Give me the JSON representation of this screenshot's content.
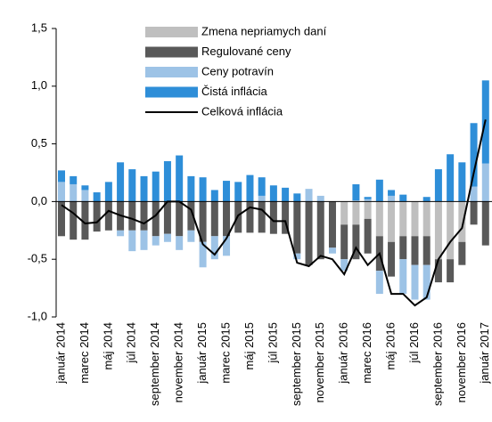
{
  "chart_data": {
    "type": "bar",
    "stacked": true,
    "categories": [
      "január 2014",
      null,
      "marec 2014",
      null,
      "máj 2014",
      null,
      "júl 2014",
      null,
      "september 2014",
      null,
      "november 2014",
      null,
      "január 2015",
      null,
      "marec 2015",
      null,
      "máj 2015",
      null,
      "júl 2015",
      null,
      "september 2015",
      null,
      "november 2015",
      null,
      "január 2016",
      null,
      "marec 2016",
      null,
      "máj 2016",
      null,
      "júl 2016",
      null,
      "september 2016",
      null,
      "november 2016",
      null,
      "január 2017"
    ],
    "series": [
      {
        "name": "Zmena nepriamych daní",
        "color": "#bfbfbf",
        "values": [
          0,
          0,
          0,
          0,
          0,
          0,
          0,
          0,
          0,
          0,
          0,
          0,
          0,
          0,
          0,
          0,
          0,
          0,
          0,
          0,
          0,
          0,
          0,
          0,
          -0.2,
          -0.2,
          -0.15,
          -0.3,
          -0.35,
          -0.3,
          -0.3,
          -0.3,
          -0.5,
          -0.5,
          -0.35,
          0,
          0
        ]
      },
      {
        "name": "Regulované ceny",
        "color": "#595959",
        "values": [
          -0.3,
          -0.33,
          -0.33,
          -0.26,
          -0.25,
          -0.25,
          -0.25,
          -0.25,
          -0.3,
          -0.28,
          -0.3,
          -0.25,
          -0.35,
          -0.3,
          -0.3,
          -0.27,
          -0.27,
          -0.27,
          -0.28,
          -0.28,
          -0.45,
          -0.55,
          -0.5,
          -0.4,
          -0.3,
          -0.3,
          -0.3,
          -0.3,
          -0.3,
          -0.2,
          -0.25,
          -0.25,
          -0.2,
          -0.2,
          -0.2,
          -0.2,
          -0.38
        ]
      },
      {
        "name": "Ceny potravín",
        "color": "#9dc3e6",
        "values": [
          0.17,
          0.15,
          0.1,
          0,
          0,
          -0.05,
          -0.18,
          -0.17,
          -0.08,
          -0.07,
          -0.12,
          -0.1,
          -0.22,
          -0.2,
          -0.17,
          0,
          0,
          0.05,
          0,
          0,
          -0.05,
          0.11,
          0.05,
          -0.05,
          -0.1,
          0.01,
          0.02,
          -0.2,
          0.05,
          -0.3,
          -0.3,
          -0.3,
          0,
          0,
          0,
          0.13,
          0.33
        ]
      },
      {
        "name": "Čistá inflácia",
        "color": "#2e8ed8",
        "values": [
          0.1,
          0.07,
          0.04,
          0.08,
          0.17,
          0.34,
          0.28,
          0.22,
          0.26,
          0.35,
          0.4,
          0.22,
          0.21,
          0.1,
          0.18,
          0.17,
          0.23,
          0.16,
          0.14,
          0.12,
          0.07,
          0,
          0,
          0,
          0,
          0.14,
          0.02,
          0.19,
          0.05,
          0.06,
          0,
          0.04,
          0.28,
          0.41,
          0.34,
          0.55,
          0.72
        ]
      },
      {
        "name": "Celková inflácia",
        "color": "#000000",
        "type": "line",
        "values": [
          -0.03,
          -0.1,
          -0.19,
          -0.18,
          -0.08,
          -0.12,
          -0.15,
          -0.19,
          -0.12,
          0,
          0,
          -0.07,
          -0.37,
          -0.46,
          -0.32,
          -0.12,
          -0.05,
          -0.07,
          -0.17,
          -0.17,
          -0.53,
          -0.56,
          -0.47,
          -0.5,
          -0.63,
          -0.4,
          -0.55,
          -0.45,
          -0.8,
          -0.8,
          -0.9,
          -0.83,
          -0.5,
          -0.35,
          -0.23,
          0.25,
          0.71
        ]
      }
    ],
    "ylim": [
      -1.0,
      1.5
    ],
    "yticks": [
      {
        "value": -1.0,
        "label": "-1,0"
      },
      {
        "value": -0.5,
        "label": "-0,5"
      },
      {
        "value": 0,
        "label": "0,0"
      },
      {
        "value": 0.5,
        "label": "0,5"
      },
      {
        "value": 1.0,
        "label": "1,0"
      },
      {
        "value": 1.5,
        "label": "1,5"
      }
    ],
    "legend": "upper left"
  }
}
